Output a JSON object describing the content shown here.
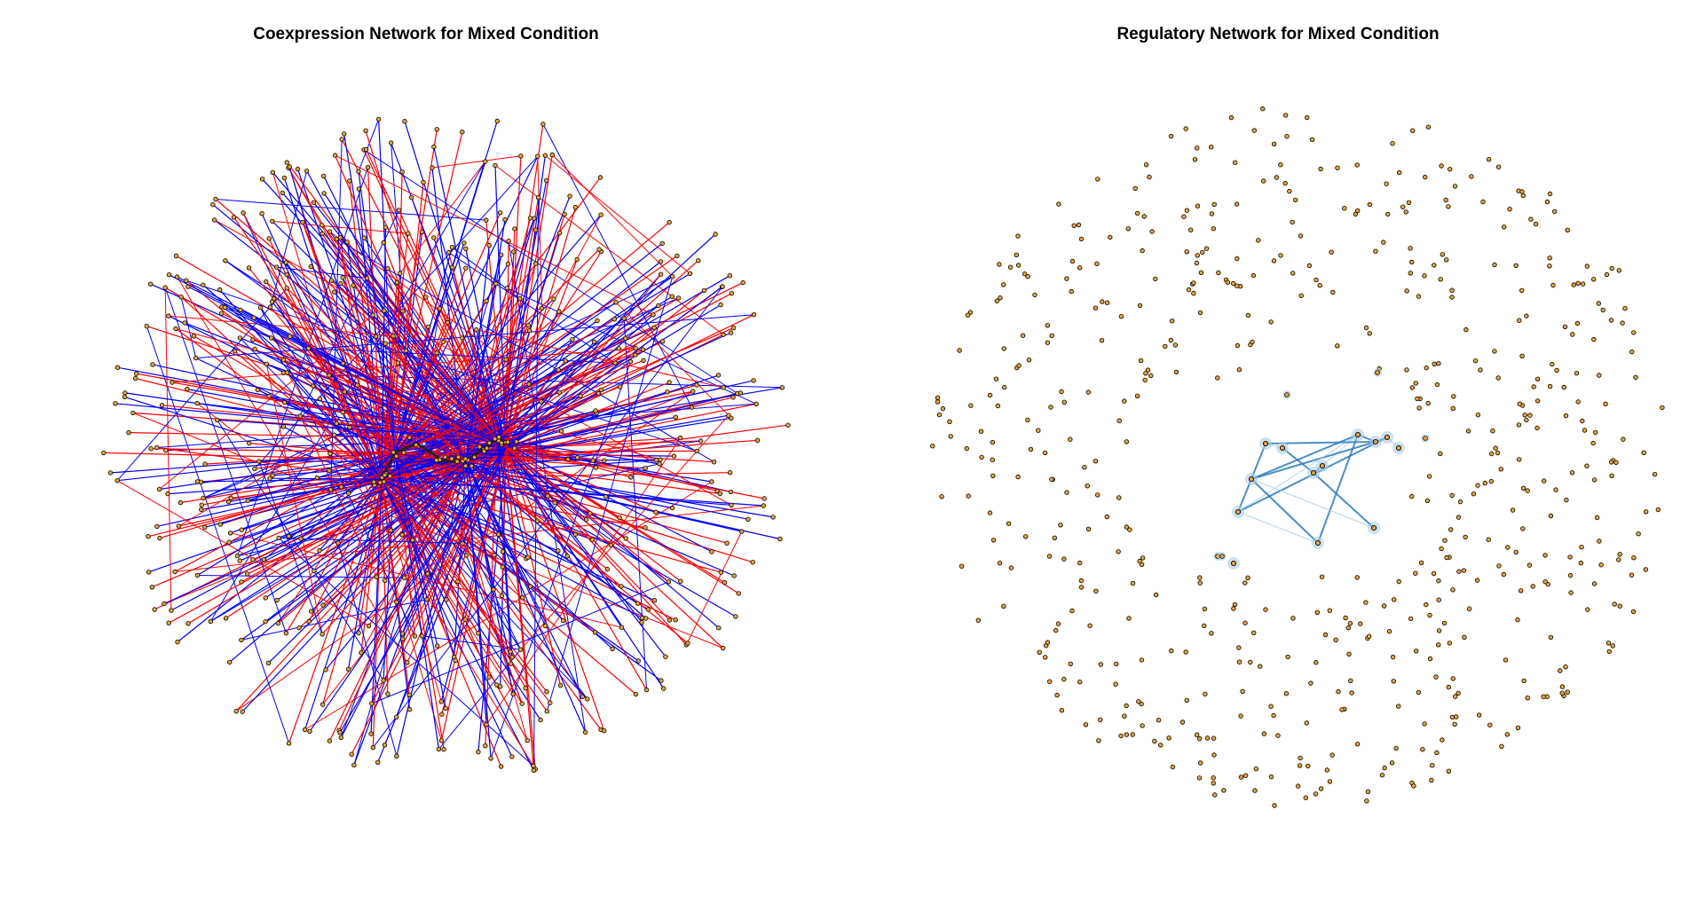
{
  "panels": [
    {
      "title": "Coexpression Network for Mixed Condition",
      "type": "coexpression-network",
      "edge_colors": {
        "positive": "#ff0000",
        "negative": "#0000ff"
      },
      "node_fill": "#e8a33a",
      "node_stroke": "#000000"
    },
    {
      "title": "Regulatory Network for Mixed Condition",
      "type": "regulatory-network",
      "edge_color": "#2b7bba",
      "edge_light_color": "#a9cde9",
      "node_fill": "#e8a33a",
      "node_stroke": "#000000"
    }
  ]
}
